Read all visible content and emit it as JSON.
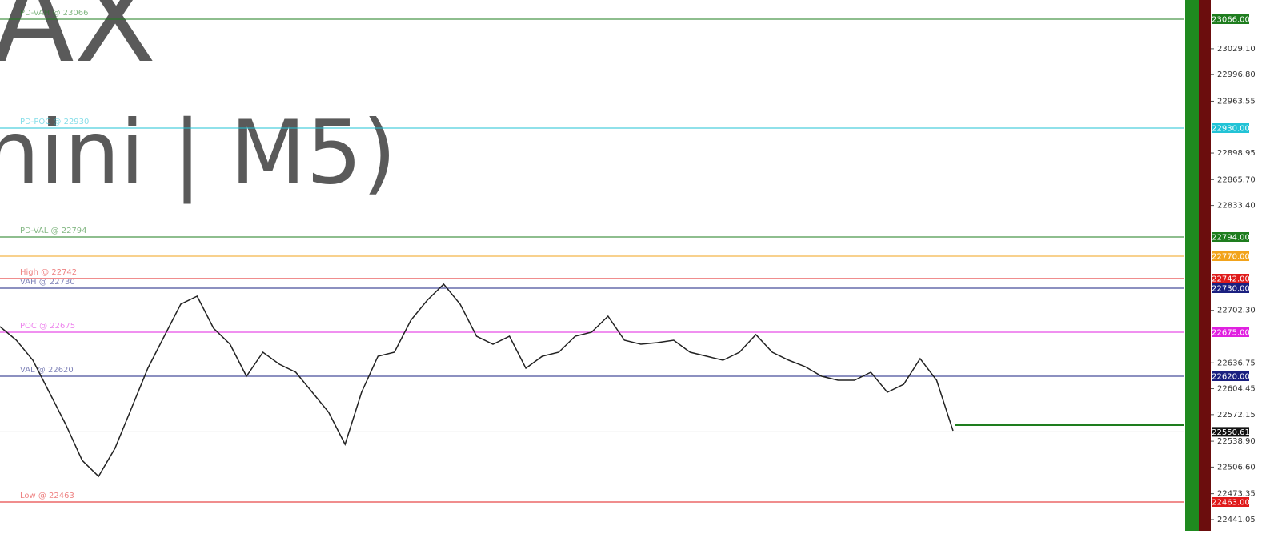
{
  "chart_data": {
    "type": "line",
    "watermark": [
      "AX",
      "nini | M5)"
    ],
    "ylim": [
      22427,
      23090
    ],
    "yticks": [
      {
        "value": 23029.1,
        "label": "23029.10"
      },
      {
        "value": 22996.8,
        "label": "22996.80"
      },
      22963.55,
      22898.95,
      {
        "value": 22865.7,
        "label": "22865.70"
      },
      {
        "value": 22833.4,
        "label": "22833.40"
      },
      {
        "value": 22702.3,
        "label": "22702.30"
      },
      22636.75,
      22604.45,
      22572.15,
      {
        "value": 22538.9,
        "label": "22538.90"
      },
      {
        "value": 22506.6,
        "label": "22506.60"
      },
      22473.35,
      22441.05
    ],
    "levels": [
      {
        "price": {
          "value": 23066,
          "label": "23066.00"
        },
        "color": "#1e7d1e",
        "note": "PD-VAH @ 23066"
      },
      {
        "price": {
          "value": 22930,
          "label": "22930.00"
        },
        "color": "#22c3d6",
        "note": "PD-POC @ 22930"
      },
      {
        "price": {
          "value": 22794,
          "label": "22794.00"
        },
        "color": "#1e7d1e",
        "note": "PD-VAL @ 22794"
      },
      {
        "price": {
          "value": 22770,
          "label": "22770.00"
        },
        "color": "#f2a31b"
      },
      {
        "price": {
          "value": 22742,
          "label": "22742.00"
        },
        "color": "#e01b1b",
        "note": "High @ 22742"
      },
      {
        "price": {
          "value": 22730,
          "label": "22730.00"
        },
        "color": "#1a2080",
        "note": "VAH @ 22730"
      },
      {
        "price": {
          "value": 22675,
          "label": "22675.00"
        },
        "color": "#e020e0",
        "note": "POC @ 22675"
      },
      {
        "price": {
          "value": 22620,
          "label": "22620.00"
        },
        "color": "#1a2080",
        "note": "VAL @ 22620"
      },
      {
        "price": {
          "value": 22550.61,
          "label": "22550.61"
        },
        "color": "#111111"
      },
      {
        "price": {
          "value": 22463,
          "label": "22463.00"
        },
        "color": "#e01b1b",
        "note": "Low @ 22463"
      }
    ],
    "series": [
      {
        "color": "#222222",
        "values": [
          22682,
          22665,
          22640,
          22600,
          22560,
          22515,
          22495,
          22530,
          22580,
          22630,
          22670,
          22710,
          22720,
          22680,
          22660,
          22620,
          22650,
          22635,
          22625,
          22600,
          22575,
          22535,
          22600,
          22645,
          22650,
          22690,
          22715,
          22735,
          22710,
          22670,
          22660,
          22670,
          22630,
          22645,
          22650,
          22670,
          22675,
          22695,
          22665,
          22660,
          22662,
          22665,
          22650,
          22645,
          22640,
          22650,
          22672,
          22650,
          22640,
          22632,
          22620,
          22615,
          22615,
          22625,
          22600,
          22610,
          22642,
          22615,
          22552
        ]
      }
    ]
  }
}
